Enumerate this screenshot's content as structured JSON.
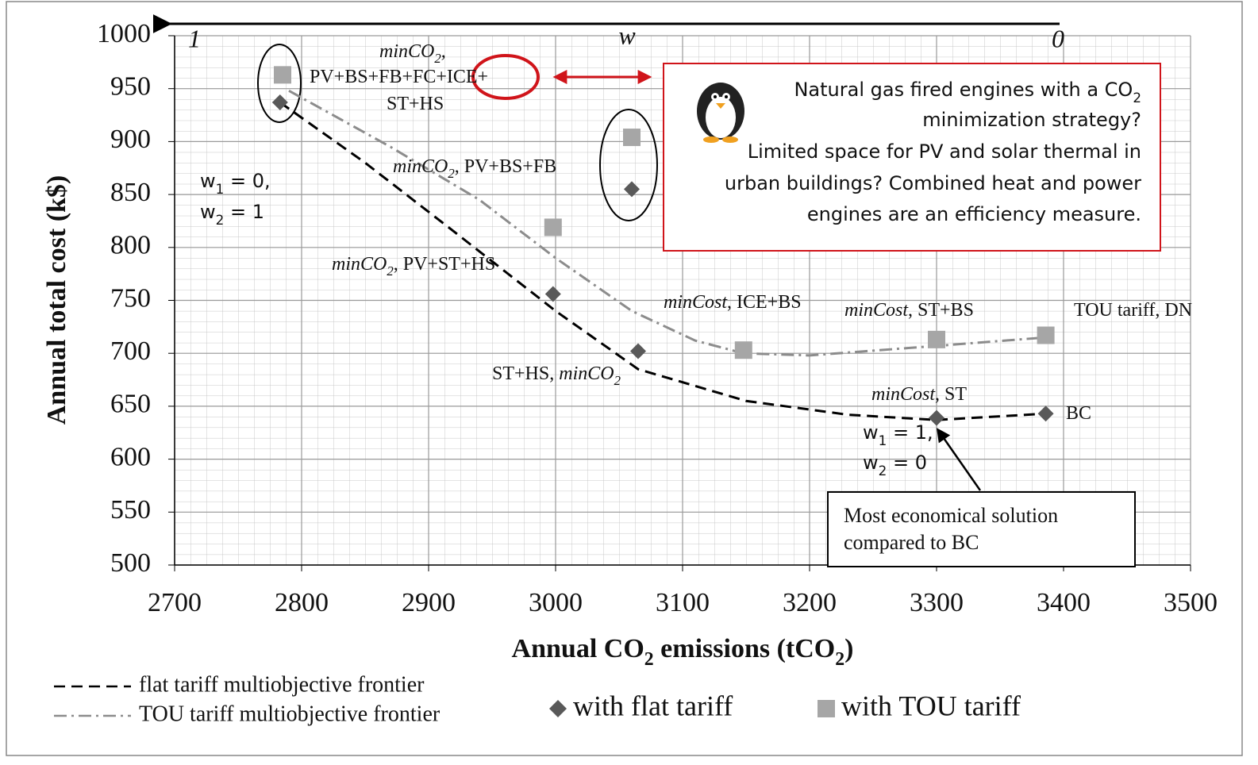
{
  "chart_data": {
    "type": "scatter",
    "xlabel": [
      {
        "text": "Annual CO"
      },
      {
        "text": "2",
        "sub": true
      },
      {
        "text": " emissions (tCO"
      },
      {
        "text": "2",
        "sub": true
      },
      {
        "text": ")"
      }
    ],
    "ylabel": "Annual total cost (k$)",
    "xlim": [
      2700,
      3500
    ],
    "xticks": [
      2700,
      2800,
      2900,
      3000,
      3100,
      3200,
      3300,
      3400,
      3500
    ],
    "ylim": [
      500,
      1000
    ],
    "yticks": [
      500,
      550,
      600,
      650,
      700,
      750,
      800,
      850,
      900,
      950,
      1000
    ],
    "grid": true,
    "series": [
      {
        "name": "flat tariff multiobjective frontier",
        "kind": "line",
        "dash": "dash",
        "color": "#000000",
        "x": [
          2783,
          2850,
          2920,
          3000,
          3065,
          3150,
          3230,
          3300,
          3386
        ],
        "values": [
          937,
          880,
          815,
          740,
          685,
          655,
          642,
          637,
          643
        ]
      },
      {
        "name": "TOU tariff multiobjective frontier",
        "kind": "line",
        "dash": "dashdot",
        "color": "#8c8c8c",
        "x": [
          2790,
          2870,
          2940,
          3000,
          3060,
          3110,
          3148,
          3200,
          3300,
          3386
        ],
        "values": [
          948,
          895,
          845,
          790,
          740,
          712,
          700,
          698,
          707,
          715
        ]
      },
      {
        "name": "with flat tariff",
        "kind": "marker",
        "marker": "diamond",
        "color": "#595959",
        "x": [
          2783,
          2998,
          3065,
          3060,
          3300,
          3386
        ],
        "values": [
          937,
          756,
          702,
          855,
          639,
          643
        ]
      },
      {
        "name": "with TOU tariff",
        "kind": "marker",
        "marker": "square",
        "color": "#a6a6a6",
        "x": [
          2785,
          2998,
          3060,
          3148,
          3300,
          3386
        ],
        "values": [
          963,
          819,
          904,
          703,
          713,
          717
        ]
      }
    ],
    "annotations": [
      [
        {
          "text": "minCO",
          "italic": true
        },
        {
          "text": "2",
          "sub": true,
          "italic": true
        },
        {
          "text": ",",
          "italic": true
        }
      ],
      [
        {
          "text": "PV+BS+FB+FC+ICE+"
        }
      ],
      [
        {
          "text": "ST+HS"
        }
      ],
      [
        {
          "text": "minCO",
          "italic": true
        },
        {
          "text": "2",
          "sub": true,
          "italic": true
        },
        {
          "text": ", PV+BS+FB"
        }
      ],
      [
        {
          "text": "minCO",
          "italic": true
        },
        {
          "text": "2",
          "sub": true,
          "italic": true
        },
        {
          "text": ", PV+ST+HS"
        }
      ],
      [
        {
          "text": "minCost",
          "italic": true
        },
        {
          "text": ", ICE+BS"
        }
      ],
      [
        {
          "text": "minCost",
          "italic": true
        },
        {
          "text": ", ST+BS"
        }
      ],
      [
        {
          "text": "TOU tariff, DN"
        }
      ],
      [
        {
          "text": "ST+HS, "
        },
        {
          "text": "minCO",
          "italic": true
        },
        {
          "text": "2",
          "sub": true,
          "italic": true
        }
      ],
      [
        {
          "text": "minCost",
          "italic": true
        },
        {
          "text": ", ST"
        }
      ],
      [
        {
          "text": "BC"
        }
      ],
      [
        {
          "text": "w"
        },
        {
          "text": "1",
          "sub": true
        },
        {
          "text": " = 0,"
        }
      ],
      [
        {
          "text": "w"
        },
        {
          "text": "2",
          "sub": true
        },
        {
          "text": " = 1"
        }
      ],
      [
        {
          "text": "w"
        },
        {
          "text": "1",
          "sub": true
        },
        {
          "text": " = 1,"
        }
      ],
      [
        {
          "text": "w"
        },
        {
          "text": "2",
          "sub": true
        },
        {
          "text": " = 0"
        }
      ]
    ],
    "weight_axis": {
      "label": "w",
      "start": "1",
      "end": "0"
    },
    "callout": [
      [
        {
          "text": "Natural gas fired engines with a CO"
        },
        {
          "text": "2",
          "sub": true
        }
      ],
      [
        {
          "text": "minimization strategy?"
        }
      ],
      [
        {
          "text": "Limited space for PV and solar thermal in"
        }
      ],
      [
        {
          "text": "urban buildings? Combined heat and power"
        }
      ],
      [
        {
          "text": "engines are an efficiency measure."
        }
      ]
    ],
    "note": [
      "Most economical solution",
      "compared to BC"
    ]
  }
}
